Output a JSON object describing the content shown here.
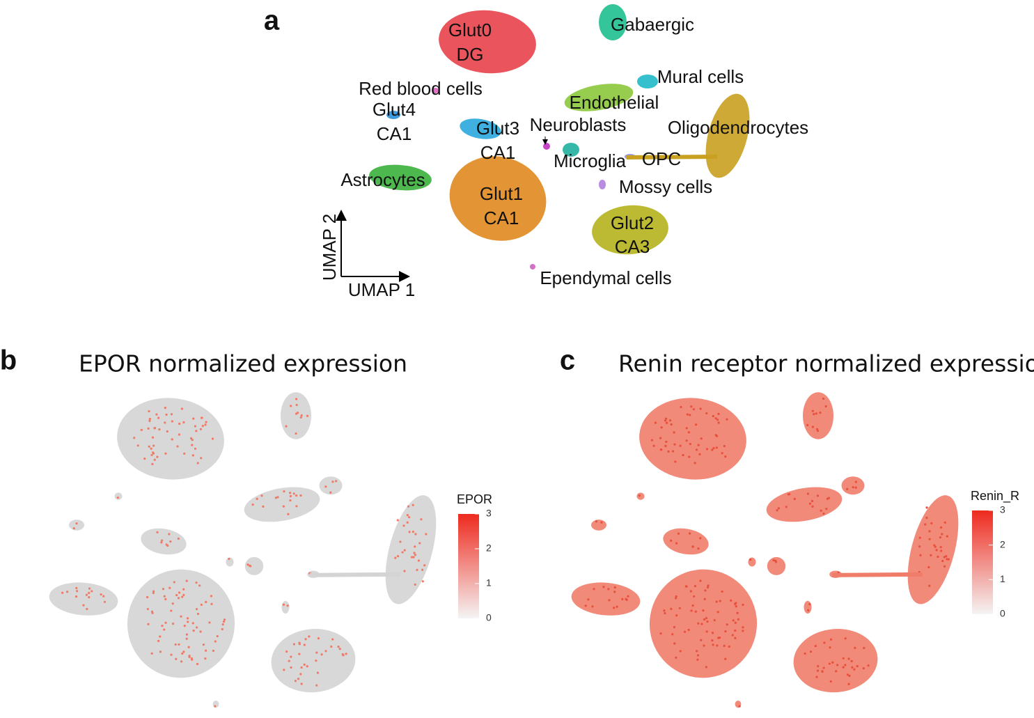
{
  "panels": [
    {
      "letter": "a",
      "axes": {
        "x": "UMAP 1",
        "y": "UMAP 2"
      },
      "clusters": [
        {
          "lines": [
            "Glut0",
            "DG"
          ],
          "color": "#e8414a"
        },
        {
          "lines": [
            "Glut1",
            "CA1"
          ],
          "color": "#e08a1f"
        },
        {
          "lines": [
            "Glut2",
            "CA3"
          ],
          "color": "#b5b21c"
        },
        {
          "lines": [
            "Glut3",
            "CA1"
          ],
          "color": "#2aa7dc"
        },
        {
          "lines": [
            "Glut4",
            "CA1"
          ],
          "color": "#2a90dc"
        },
        {
          "lines": [
            "Astrocytes"
          ],
          "color": "#3ab03a"
        },
        {
          "lines": [
            "Oligodendrocytes"
          ],
          "color": "#c9a020"
        },
        {
          "lines": [
            "Gabaergic"
          ],
          "color": "#1fbf8f"
        },
        {
          "lines": [
            "Mural cells"
          ],
          "color": "#20b8c8"
        },
        {
          "lines": [
            "Endothelial"
          ],
          "color": "#8cc83c"
        },
        {
          "lines": [
            "Microglia"
          ],
          "color": "#20b0a0"
        },
        {
          "lines": [
            "Neuroblasts"
          ],
          "color": "#c030c0"
        },
        {
          "lines": [
            "Red blood cells"
          ],
          "color": "#e060c0"
        },
        {
          "lines": [
            "Mossy cells"
          ],
          "color": "#b080e0"
        },
        {
          "lines": [
            "Ependymal cells"
          ],
          "color": "#d060c0"
        },
        {
          "lines": [
            "OPC"
          ],
          "color": "#9090e0"
        }
      ]
    },
    {
      "letter": "b",
      "title": "EPOR normalized expression",
      "legend": {
        "title": "EPOR",
        "ticks": [
          0,
          1,
          2,
          3
        ]
      },
      "color": "#d4d4d4",
      "dot_color": "#f07a66"
    },
    {
      "letter": "c",
      "title": "Renin receptor normalized expression",
      "legend": {
        "title": "Renin_R",
        "ticks": [
          0,
          1,
          2,
          3
        ]
      },
      "color": "#f07d6a",
      "dot_color": "#e8503c"
    }
  ]
}
